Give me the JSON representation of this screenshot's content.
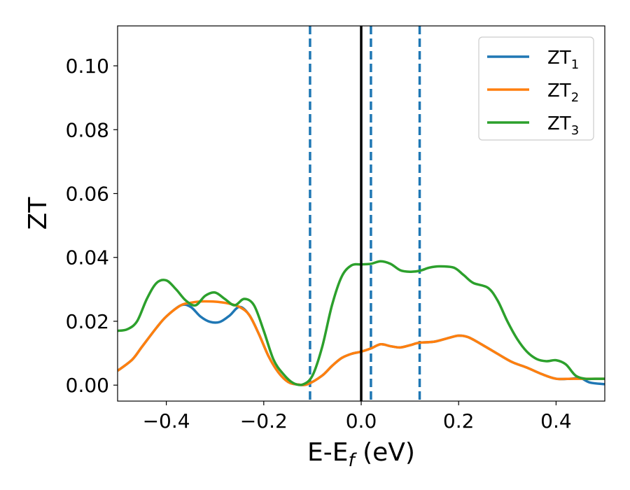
{
  "chart_data": {
    "type": "line",
    "xlabel": {
      "main": "E-E",
      "sub": "f",
      "tail": " (eV)"
    },
    "ylabel": "ZT",
    "xlim": [
      -0.5,
      0.5
    ],
    "ylim": [
      -0.005,
      0.1125
    ],
    "xticks": [
      -0.4,
      -0.2,
      0.0,
      0.2,
      0.4
    ],
    "xtick_labels": [
      "−0.4",
      "−0.2",
      "0.0",
      "0.2",
      "0.4"
    ],
    "yticks": [
      0.0,
      0.02,
      0.04,
      0.06,
      0.08,
      0.1
    ],
    "ytick_labels": [
      "0.00",
      "0.02",
      "0.04",
      "0.06",
      "0.08",
      "0.10"
    ],
    "grid": false,
    "legend_position": "top-right",
    "series": [
      {
        "name": "ZT",
        "sub": "1",
        "color": "#1f77b4",
        "points": [
          [
            -0.5,
            0.0045
          ],
          [
            -0.47,
            0.008
          ],
          [
            -0.45,
            0.012
          ],
          [
            -0.42,
            0.018
          ],
          [
            -0.4,
            0.0215
          ],
          [
            -0.37,
            0.025
          ],
          [
            -0.35,
            0.0245
          ],
          [
            -0.33,
            0.0215
          ],
          [
            -0.31,
            0.0198
          ],
          [
            -0.29,
            0.0198
          ],
          [
            -0.27,
            0.0218
          ],
          [
            -0.25,
            0.0245
          ],
          [
            -0.23,
            0.022
          ],
          [
            -0.21,
            0.016
          ],
          [
            -0.19,
            0.009
          ],
          [
            -0.17,
            0.004
          ],
          [
            -0.15,
            0.001
          ],
          [
            -0.13,
            0.0002
          ],
          [
            -0.11,
            0.0003
          ],
          [
            -0.08,
            0.003
          ],
          [
            -0.06,
            0.006
          ],
          [
            -0.04,
            0.0085
          ],
          [
            -0.02,
            0.0098
          ],
          [
            0.0,
            0.0105
          ],
          [
            0.02,
            0.0115
          ],
          [
            0.04,
            0.0128
          ],
          [
            0.06,
            0.0122
          ],
          [
            0.08,
            0.0118
          ],
          [
            0.1,
            0.0125
          ],
          [
            0.12,
            0.0133
          ],
          [
            0.15,
            0.0136
          ],
          [
            0.18,
            0.0148
          ],
          [
            0.2,
            0.0155
          ],
          [
            0.22,
            0.015
          ],
          [
            0.25,
            0.0125
          ],
          [
            0.28,
            0.0098
          ],
          [
            0.31,
            0.0072
          ],
          [
            0.34,
            0.0055
          ],
          [
            0.37,
            0.0035
          ],
          [
            0.4,
            0.002
          ],
          [
            0.43,
            0.002
          ],
          [
            0.45,
            0.0022
          ],
          [
            0.47,
            0.0008
          ],
          [
            0.5,
            0.0003
          ]
        ]
      },
      {
        "name": "ZT",
        "sub": "2",
        "color": "#ff7f0e",
        "points": [
          [
            -0.5,
            0.0045
          ],
          [
            -0.47,
            0.008
          ],
          [
            -0.45,
            0.012
          ],
          [
            -0.42,
            0.018
          ],
          [
            -0.4,
            0.0215
          ],
          [
            -0.37,
            0.025
          ],
          [
            -0.35,
            0.0258
          ],
          [
            -0.33,
            0.0262
          ],
          [
            -0.31,
            0.0262
          ],
          [
            -0.29,
            0.026
          ],
          [
            -0.27,
            0.0255
          ],
          [
            -0.25,
            0.0245
          ],
          [
            -0.23,
            0.022
          ],
          [
            -0.21,
            0.016
          ],
          [
            -0.19,
            0.009
          ],
          [
            -0.17,
            0.004
          ],
          [
            -0.15,
            0.001
          ],
          [
            -0.13,
            0.0002
          ],
          [
            -0.11,
            0.0003
          ],
          [
            -0.08,
            0.003
          ],
          [
            -0.06,
            0.006
          ],
          [
            -0.04,
            0.0085
          ],
          [
            -0.02,
            0.0098
          ],
          [
            0.0,
            0.0105
          ],
          [
            0.02,
            0.0115
          ],
          [
            0.04,
            0.0128
          ],
          [
            0.06,
            0.0122
          ],
          [
            0.08,
            0.0118
          ],
          [
            0.1,
            0.0125
          ],
          [
            0.12,
            0.0133
          ],
          [
            0.15,
            0.0136
          ],
          [
            0.18,
            0.0148
          ],
          [
            0.2,
            0.0155
          ],
          [
            0.22,
            0.015
          ],
          [
            0.25,
            0.0125
          ],
          [
            0.28,
            0.0098
          ],
          [
            0.31,
            0.0072
          ],
          [
            0.34,
            0.0055
          ],
          [
            0.37,
            0.0035
          ],
          [
            0.4,
            0.002
          ],
          [
            0.43,
            0.002
          ],
          [
            0.45,
            0.002
          ],
          [
            0.47,
            0.002
          ],
          [
            0.5,
            0.002
          ]
        ]
      },
      {
        "name": "ZT",
        "sub": "3",
        "color": "#2ca02c",
        "points": [
          [
            -0.5,
            0.017
          ],
          [
            -0.48,
            0.0175
          ],
          [
            -0.46,
            0.02
          ],
          [
            -0.44,
            0.027
          ],
          [
            -0.42,
            0.032
          ],
          [
            -0.4,
            0.0328
          ],
          [
            -0.38,
            0.03
          ],
          [
            -0.36,
            0.0265
          ],
          [
            -0.34,
            0.025
          ],
          [
            -0.32,
            0.028
          ],
          [
            -0.3,
            0.029
          ],
          [
            -0.28,
            0.027
          ],
          [
            -0.26,
            0.025
          ],
          [
            -0.24,
            0.027
          ],
          [
            -0.22,
            0.025
          ],
          [
            -0.2,
            0.017
          ],
          [
            -0.18,
            0.008
          ],
          [
            -0.16,
            0.0035
          ],
          [
            -0.14,
            0.0007
          ],
          [
            -0.12,
            0.0002
          ],
          [
            -0.1,
            0.003
          ],
          [
            -0.08,
            0.012
          ],
          [
            -0.06,
            0.025
          ],
          [
            -0.04,
            0.034
          ],
          [
            -0.02,
            0.0375
          ],
          [
            0.0,
            0.0378
          ],
          [
            0.02,
            0.038
          ],
          [
            0.04,
            0.0388
          ],
          [
            0.06,
            0.038
          ],
          [
            0.08,
            0.036
          ],
          [
            0.1,
            0.0355
          ],
          [
            0.12,
            0.0358
          ],
          [
            0.14,
            0.0368
          ],
          [
            0.16,
            0.0372
          ],
          [
            0.19,
            0.0368
          ],
          [
            0.21,
            0.0345
          ],
          [
            0.23,
            0.032
          ],
          [
            0.26,
            0.0305
          ],
          [
            0.28,
            0.0265
          ],
          [
            0.3,
            0.02
          ],
          [
            0.32,
            0.0145
          ],
          [
            0.34,
            0.0105
          ],
          [
            0.36,
            0.0082
          ],
          [
            0.38,
            0.0075
          ],
          [
            0.4,
            0.0078
          ],
          [
            0.42,
            0.0065
          ],
          [
            0.44,
            0.003
          ],
          [
            0.46,
            0.002
          ],
          [
            0.48,
            0.002
          ],
          [
            0.5,
            0.002
          ]
        ]
      }
    ],
    "vertical_lines": [
      {
        "x": 0.0,
        "style": "solid",
        "color": "#000000"
      },
      {
        "x": -0.105,
        "style": "dashed",
        "color": "#1f77b4"
      },
      {
        "x": 0.02,
        "style": "dashed",
        "color": "#1f77b4"
      },
      {
        "x": 0.12,
        "style": "dashed",
        "color": "#1f77b4"
      }
    ]
  }
}
